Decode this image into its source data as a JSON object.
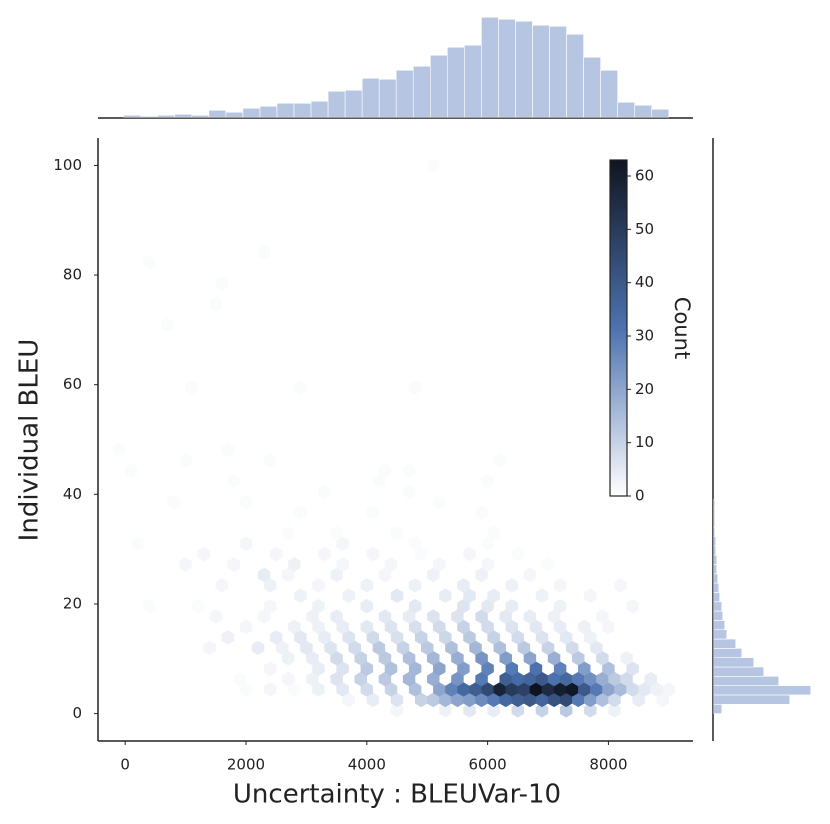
{
  "chart_data": {
    "type": "hexbin",
    "xlabel": "Uncertainty : BLEUVar-10",
    "ylabel": "Individual BLEU",
    "xlim": [
      -450,
      9400
    ],
    "xticks": [
      0,
      2000,
      4000,
      6000,
      8000
    ],
    "ylim": [
      -5,
      105
    ],
    "yticks": [
      0,
      20,
      40,
      60,
      80,
      100
    ],
    "colormap": [
      "#ffffff",
      "#4c72b0",
      "#0f1520"
    ],
    "colorbar": {
      "label": "Count",
      "clim": [
        0,
        63
      ],
      "ticks": [
        0,
        10,
        20,
        30,
        40,
        50,
        60
      ]
    },
    "rows": [
      {
        "y": 0.6,
        "x": [
          4500,
          5300,
          5700,
          6100,
          6500,
          6900,
          7300,
          7700,
          8100
        ],
        "counts": [
          2,
          3,
          5,
          4,
          8,
          10,
          12,
          8,
          3
        ]
      },
      {
        "y": 2.5,
        "x": [
          3700,
          4100,
          4500,
          4900,
          5100,
          5300,
          5500,
          5700,
          5900,
          6100,
          6300,
          6500,
          6700,
          6900,
          7100,
          7300,
          7500,
          7700,
          7900,
          8100,
          8500,
          8900
        ],
        "counts": [
          2,
          4,
          6,
          10,
          12,
          16,
          20,
          22,
          26,
          30,
          35,
          38,
          40,
          36,
          42,
          45,
          30,
          22,
          14,
          8,
          4,
          2
        ]
      },
      {
        "y": 4.4,
        "x": [
          2000,
          2400,
          2800,
          3200,
          3600,
          4000,
          4400,
          4800,
          5200,
          5400,
          5600,
          5800,
          6000,
          6200,
          6400,
          6600,
          6800,
          7000,
          7200,
          7400,
          7600,
          7800,
          8000,
          8200,
          8400,
          8600,
          8800,
          9000
        ],
        "counts": [
          1,
          2,
          1,
          3,
          5,
          8,
          10,
          14,
          20,
          28,
          35,
          38,
          45,
          58,
          50,
          48,
          63,
          55,
          60,
          62,
          40,
          30,
          20,
          15,
          8,
          5,
          3,
          2
        ]
      },
      {
        "y": 6.3,
        "x": [
          1900,
          2700,
          3100,
          3500,
          3900,
          4300,
          4700,
          5100,
          5500,
          5900,
          6300,
          6500,
          6700,
          6900,
          7100,
          7300,
          7500,
          7700,
          7900,
          8100,
          8300,
          8700
        ],
        "counts": [
          1,
          2,
          3,
          6,
          10,
          12,
          16,
          18,
          24,
          30,
          38,
          34,
          36,
          40,
          32,
          35,
          30,
          25,
          18,
          12,
          8,
          4
        ]
      },
      {
        "y": 8.2,
        "x": [
          2400,
          3200,
          3600,
          4000,
          4400,
          4800,
          5200,
          5600,
          6000,
          6400,
          6800,
          7200,
          7600,
          8000,
          8400
        ],
        "counts": [
          2,
          4,
          6,
          12,
          14,
          16,
          20,
          22,
          28,
          30,
          32,
          28,
          22,
          14,
          6
        ]
      },
      {
        "y": 10.1,
        "x": [
          2700,
          3100,
          3500,
          3900,
          4300,
          4700,
          5100,
          5500,
          5900,
          6300,
          6700,
          7100,
          7500,
          7900,
          8300
        ],
        "counts": [
          3,
          4,
          8,
          10,
          12,
          14,
          16,
          18,
          24,
          22,
          20,
          18,
          12,
          8,
          3
        ]
      },
      {
        "y": 12.0,
        "x": [
          1400,
          2200,
          2600,
          3000,
          3400,
          3800,
          4200,
          4600,
          5000,
          5400,
          5800,
          6200,
          6600,
          7000,
          7400,
          7800
        ],
        "counts": [
          2,
          4,
          3,
          5,
          6,
          8,
          12,
          10,
          12,
          14,
          16,
          14,
          12,
          10,
          8,
          5
        ]
      },
      {
        "y": 13.9,
        "x": [
          1700,
          2500,
          2900,
          3300,
          3700,
          4100,
          4500,
          4900,
          5300,
          5700,
          6100,
          6500,
          6900,
          7300,
          7700
        ],
        "counts": [
          3,
          4,
          5,
          4,
          6,
          8,
          7,
          10,
          9,
          12,
          10,
          8,
          6,
          5,
          3
        ]
      },
      {
        "y": 15.8,
        "x": [
          2000,
          2800,
          3200,
          3600,
          4000,
          4400,
          4800,
          5200,
          5600,
          6000,
          6400,
          6800,
          7200,
          7600,
          8000
        ],
        "counts": [
          2,
          3,
          3,
          4,
          5,
          6,
          7,
          8,
          10,
          8,
          6,
          5,
          4,
          3,
          2
        ]
      },
      {
        "y": 17.7,
        "x": [
          1500,
          2300,
          3100,
          3500,
          4300,
          4700,
          5100,
          5500,
          5900,
          6300,
          6700,
          7100,
          7900
        ],
        "counts": [
          2,
          2,
          3,
          4,
          5,
          4,
          6,
          6,
          8,
          5,
          4,
          3,
          2
        ]
      },
      {
        "y": 19.6,
        "x": [
          400,
          1200,
          2400,
          3200,
          4000,
          4800,
          5600,
          6000,
          6400,
          7200,
          8400
        ],
        "counts": [
          1,
          1,
          2,
          3,
          4,
          5,
          6,
          5,
          4,
          3,
          2
        ]
      },
      {
        "y": 21.5,
        "x": [
          2900,
          3700,
          4500,
          5300,
          5700,
          6100,
          6900,
          7700
        ],
        "counts": [
          3,
          3,
          5,
          4,
          5,
          4,
          3,
          2
        ]
      },
      {
        "y": 23.4,
        "x": [
          1600,
          2400,
          3200,
          4000,
          4800,
          5600,
          6400,
          7200,
          8200
        ],
        "counts": [
          2,
          3,
          2,
          3,
          3,
          4,
          3,
          2,
          2
        ]
      },
      {
        "y": 25.3,
        "x": [
          2300,
          2700,
          3500,
          4300,
          5100,
          5900,
          6700
        ],
        "counts": [
          4,
          2,
          3,
          2,
          3,
          3,
          2
        ]
      },
      {
        "y": 27.2,
        "x": [
          1000,
          1800,
          2800,
          3600,
          4400,
          5200,
          6000,
          7000
        ],
        "counts": [
          2,
          2,
          3,
          2,
          2,
          2,
          2,
          1
        ]
      },
      {
        "y": 29.1,
        "x": [
          1300,
          2500,
          3300,
          4100,
          4900,
          5700,
          6500
        ],
        "counts": [
          2,
          2,
          2,
          2,
          1,
          2,
          1
        ]
      },
      {
        "y": 31.0,
        "x": [
          200,
          2000,
          3600,
          4800,
          6000
        ],
        "counts": [
          1,
          2,
          2,
          1,
          1
        ]
      },
      {
        "y": 32.9,
        "x": [
          2700,
          3500,
          4500,
          6100
        ],
        "counts": [
          1,
          1,
          1,
          1
        ]
      },
      {
        "y": 36.7,
        "x": [
          2900,
          4100,
          5900
        ],
        "counts": [
          1,
          1,
          1
        ]
      },
      {
        "y": 38.6,
        "x": [
          800,
          2000,
          5200
        ],
        "counts": [
          1,
          1,
          1
        ]
      },
      {
        "y": 40.5,
        "x": [
          3300,
          4700
        ],
        "counts": [
          1,
          1
        ]
      },
      {
        "y": 42.4,
        "x": [
          1800,
          4200,
          6000
        ],
        "counts": [
          1,
          1,
          1
        ]
      },
      {
        "y": 44.3,
        "x": [
          100,
          4300,
          4700
        ],
        "counts": [
          1,
          1,
          1
        ]
      },
      {
        "y": 46.2,
        "x": [
          1000,
          2400,
          6200
        ],
        "counts": [
          1,
          1,
          1
        ]
      },
      {
        "y": 48.1,
        "x": [
          -100,
          1700
        ],
        "counts": [
          1,
          1
        ]
      },
      {
        "y": 59.5,
        "x": [
          1100,
          2900,
          4800
        ],
        "counts": [
          1,
          1,
          1
        ]
      },
      {
        "y": 70.9,
        "x": [
          700
        ],
        "counts": [
          1
        ]
      },
      {
        "y": 74.7,
        "x": [
          1500
        ],
        "counts": [
          1
        ]
      },
      {
        "y": 78.5,
        "x": [
          1600
        ],
        "counts": [
          1
        ]
      },
      {
        "y": 82.3,
        "x": [
          400
        ],
        "counts": [
          1
        ]
      },
      {
        "y": 84.2,
        "x": [
          2300
        ],
        "counts": [
          1
        ]
      },
      {
        "y": 100.0,
        "x": [
          5100
        ],
        "counts": [
          1
        ]
      }
    ],
    "top_hist": {
      "color": "#b6c5e1",
      "ylim": [
        0,
        100
      ],
      "bins": [
        -25,
        257,
        539,
        821,
        1103,
        1385,
        1667,
        1949,
        2231,
        2513,
        2795,
        3077,
        3359,
        3641,
        3923,
        4205,
        4487,
        4769,
        5051,
        5333,
        5615,
        5897,
        6179,
        6461,
        6743,
        7025,
        7307,
        7589,
        7871,
        8153,
        8435,
        8717,
        8999
      ],
      "counts": [
        2,
        1,
        2,
        3,
        2,
        7,
        5,
        9,
        11,
        14,
        14,
        16,
        26,
        27,
        39,
        38,
        47,
        51,
        62,
        70,
        72,
        100,
        98,
        96,
        92,
        91,
        83,
        60,
        47,
        15,
        12,
        8
      ]
    },
    "right_hist": {
      "color": "#b6c5e1",
      "xlim": [
        0,
        100
      ],
      "bins": [
        0,
        1.7,
        3.4,
        5.1,
        6.8,
        8.5,
        10.2,
        11.9,
        13.6,
        15.3,
        17.0,
        18.7,
        20.4,
        22.1,
        23.8,
        25.5,
        27.2,
        28.9,
        30.6,
        32.3,
        34.0,
        35.7,
        37.4,
        39.1
      ],
      "counts": [
        8,
        76,
        97,
        65,
        50,
        40,
        28,
        22,
        13,
        11,
        9,
        8,
        6,
        5,
        4,
        3,
        3,
        2,
        2,
        1,
        1,
        1,
        1
      ]
    }
  }
}
